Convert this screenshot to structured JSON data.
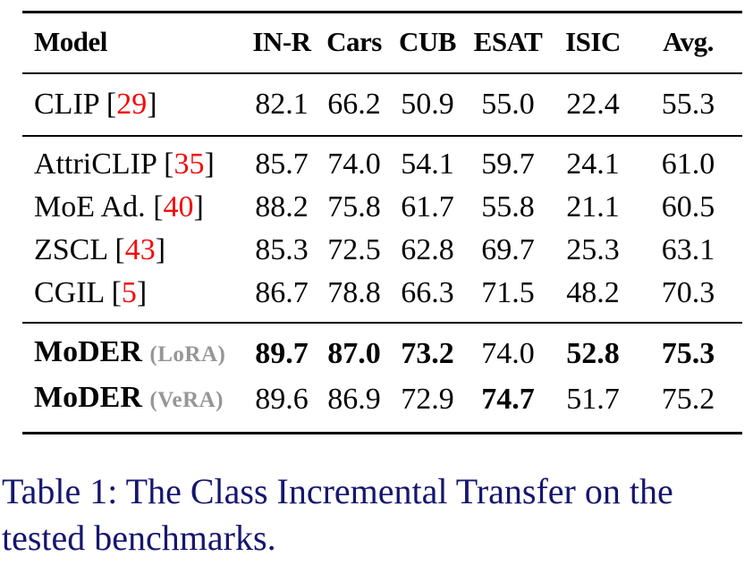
{
  "colors": {
    "citation_red": "#f20d0d",
    "variant_gray": "#969696",
    "caption_navy": "#16166f",
    "text_black": "#050505",
    "background": "#ffffff"
  },
  "table": {
    "header": [
      "Model",
      "IN-R",
      "Cars",
      "CUB",
      "ESAT",
      "ISIC",
      "Avg."
    ],
    "groups": [
      {
        "rows": [
          {
            "name": "CLIP",
            "name_bold": false,
            "ref": "29",
            "variant": "",
            "values": [
              "82.1",
              "66.2",
              "50.9",
              "55.0",
              "22.4",
              "55.3"
            ],
            "bold": [
              false,
              false,
              false,
              false,
              false,
              false
            ]
          }
        ]
      },
      {
        "rows": [
          {
            "name": "AttriCLIP",
            "name_bold": false,
            "ref": "35",
            "variant": "",
            "values": [
              "85.7",
              "74.0",
              "54.1",
              "59.7",
              "24.1",
              "61.0"
            ],
            "bold": [
              false,
              false,
              false,
              false,
              false,
              false
            ]
          },
          {
            "name": "MoE Ad.",
            "name_bold": false,
            "ref": "40",
            "variant": "",
            "values": [
              "88.2",
              "75.8",
              "61.7",
              "55.8",
              "21.1",
              "60.5"
            ],
            "bold": [
              false,
              false,
              false,
              false,
              false,
              false
            ]
          },
          {
            "name": "ZSCL",
            "name_bold": false,
            "ref": "43",
            "variant": "",
            "values": [
              "85.3",
              "72.5",
              "62.8",
              "69.7",
              "25.3",
              "63.1"
            ],
            "bold": [
              false,
              false,
              false,
              false,
              false,
              false
            ]
          },
          {
            "name": "CGIL",
            "name_bold": false,
            "ref": "5",
            "variant": "",
            "values": [
              "86.7",
              "78.8",
              "66.3",
              "71.5",
              "48.2",
              "70.3"
            ],
            "bold": [
              false,
              false,
              false,
              false,
              false,
              false
            ]
          }
        ]
      },
      {
        "rows": [
          {
            "name": "MoDER",
            "name_bold": true,
            "ref": "",
            "variant": "(LoRA)",
            "values": [
              "89.7",
              "87.0",
              "73.2",
              "74.0",
              "52.8",
              "75.3"
            ],
            "bold": [
              true,
              true,
              true,
              false,
              true,
              true
            ]
          },
          {
            "name": "MoDER",
            "name_bold": true,
            "ref": "",
            "variant": "(VeRA)",
            "values": [
              "89.6",
              "86.9",
              "72.9",
              "74.7",
              "51.7",
              "75.2"
            ],
            "bold": [
              false,
              false,
              false,
              true,
              false,
              false
            ]
          }
        ]
      }
    ]
  },
  "caption": {
    "text": "Table 1: The Class Incremental Transfer on the tested benchmarks."
  }
}
